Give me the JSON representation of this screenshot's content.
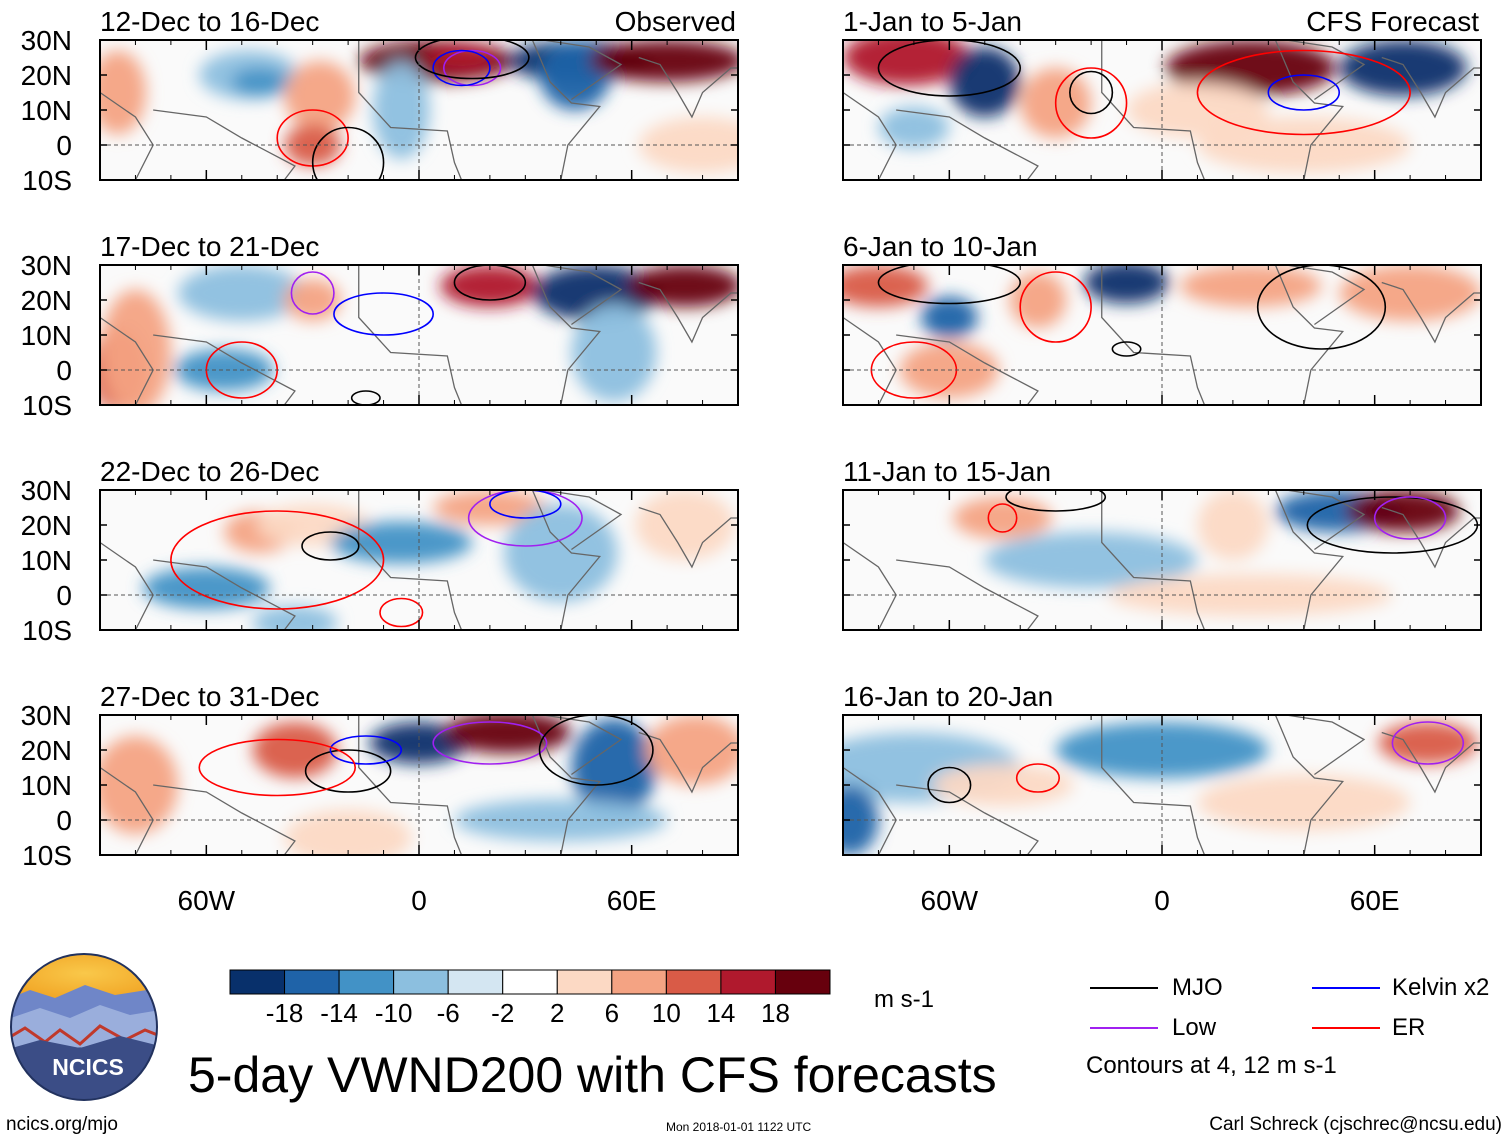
{
  "chart_data": {
    "type": "heatmap",
    "title": "5-day VWND200 with CFS forecasts",
    "variable": "VWND200",
    "units": "m s-1",
    "column_labels": [
      "Observed",
      "CFS Forecast"
    ],
    "panels": [
      {
        "column": "Observed",
        "period": "12-Dec to 16-Dec",
        "label": "Observed"
      },
      {
        "column": "Observed",
        "period": "17-Dec to 21-Dec",
        "label": ""
      },
      {
        "column": "Observed",
        "period": "22-Dec to 26-Dec",
        "label": ""
      },
      {
        "column": "Observed",
        "period": "27-Dec to 31-Dec",
        "label": ""
      },
      {
        "column": "CFS Forecast",
        "period": "1-Jan to 5-Jan",
        "label": "CFS Forecast"
      },
      {
        "column": "CFS Forecast",
        "period": "6-Jan to 10-Jan",
        "label": ""
      },
      {
        "column": "CFS Forecast",
        "period": "11-Jan to 15-Jan",
        "label": ""
      },
      {
        "column": "CFS Forecast",
        "period": "16-Jan to 20-Jan",
        "label": ""
      }
    ],
    "x_ticks": [
      {
        "lon": -60,
        "label": "60W"
      },
      {
        "lon": 0,
        "label": "0"
      },
      {
        "lon": 60,
        "label": "60E"
      }
    ],
    "y_ticks": [
      {
        "lat": 30,
        "label": "30N"
      },
      {
        "lat": 20,
        "label": "20N"
      },
      {
        "lat": 10,
        "label": "10N"
      },
      {
        "lat": 0,
        "label": "0"
      },
      {
        "lat": -10,
        "label": "10S"
      }
    ],
    "xlim": [
      -90,
      90
    ],
    "ylim": [
      -10,
      30
    ],
    "colorbar": {
      "levels": [
        "-18",
        "-14",
        "-10",
        "-6",
        "-2",
        "2",
        "6",
        "10",
        "14",
        "18"
      ],
      "colors": [
        "#08306b",
        "#1f63a8",
        "#4292c6",
        "#8cbfdf",
        "#d4e6f2",
        "#ffffff",
        "#fcd9c4",
        "#f4a383",
        "#d95b47",
        "#b0192d",
        "#67000d"
      ]
    },
    "legend": [
      {
        "name": "MJO",
        "color": "#000000"
      },
      {
        "name": "Kelvin x2",
        "color": "#0000ff"
      },
      {
        "name": "Low",
        "color": "#a020f0"
      },
      {
        "name": "ER",
        "color": "#ff0000"
      }
    ],
    "contour_note": "Contours at 4, 12 m s-1"
  },
  "logo": {
    "text": "NCICS"
  },
  "footer": {
    "url": "ncics.org/mjo",
    "timestamp": "Mon 2018-01-01 1122 UTC",
    "credit": "Carl Schreck (cjschrec@ncsu.edu)"
  }
}
